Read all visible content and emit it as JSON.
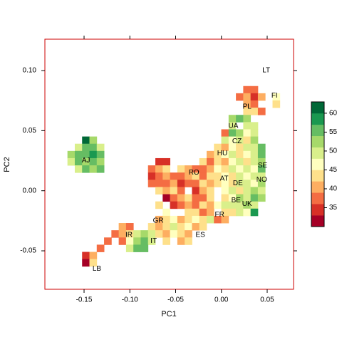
{
  "chart_data": {
    "type": "heatmap",
    "xlabel": "PC1",
    "ylabel": "PC2",
    "xlim": [
      -0.1928,
      0.0788
    ],
    "ylim": [
      -0.082,
      0.1261
    ],
    "xticks": [
      -0.15,
      {
        "value": -0.1,
        "label": "-0.10"
      },
      -0.05,
      {
        "value": 0,
        "label": "0.00"
      },
      0.05
    ],
    "yticks": [
      -0.05,
      {
        "value": 0,
        "label": "0.00"
      },
      0.05,
      {
        "value": 0.1,
        "label": "0.10"
      }
    ],
    "border_color": "#cc0000",
    "rows": [
      {
        "y": 0.084,
        "x": [
          0.028,
          0.036
        ],
        "values": [
          36,
          36
        ]
      },
      {
        "y": 0.078,
        "x": [
          0.02,
          0.028,
          0.036,
          0.044,
          0.06
        ],
        "values": [
          38,
          40,
          34,
          40,
          46
        ]
      },
      {
        "y": 0.072,
        "x": [
          0.028,
          0.036,
          0.06
        ],
        "values": [
          40,
          36,
          44
        ]
      },
      {
        "y": 0.066,
        "x": [
          0.028,
          0.036,
          0.044
        ],
        "values": [
          42,
          44,
          38
        ]
      },
      {
        "y": 0.06,
        "x": [
          0.012,
          0.02,
          0.028
        ],
        "values": [
          52,
          56,
          52
        ]
      },
      {
        "y": 0.054,
        "x": [
          0.012,
          0.028,
          0.036
        ],
        "values": [
          50,
          48,
          50
        ]
      },
      {
        "y": 0.048,
        "x": [
          0.004,
          0.012,
          0.02,
          0.028,
          0.036
        ],
        "values": [
          38,
          54,
          52,
          46,
          48
        ]
      },
      {
        "y": 0.042,
        "x": [
          -0.148,
          -0.14,
          0.004,
          0.012,
          0.02,
          0.028,
          0.036
        ],
        "values": [
          62,
          52,
          50,
          46,
          48,
          44,
          52
        ]
      },
      {
        "y": 0.036,
        "x": [
          -0.156,
          -0.148,
          -0.14,
          -0.132,
          -0.004,
          0.004,
          0.012,
          0.02,
          0.028,
          0.036,
          0.044
        ],
        "values": [
          50,
          56,
          54,
          48,
          42,
          40,
          46,
          44,
          48,
          50,
          56
        ]
      },
      {
        "y": 0.03,
        "x": [
          -0.164,
          -0.156,
          -0.148,
          -0.14,
          -0.132,
          -0.012,
          -0.004,
          0.004,
          0.012,
          0.02,
          0.028,
          0.036,
          0.044
        ],
        "values": [
          52,
          56,
          54,
          58,
          56,
          40,
          44,
          46,
          48,
          42,
          46,
          50,
          54
        ]
      },
      {
        "y": 0.024,
        "x": [
          -0.164,
          -0.156,
          -0.148,
          -0.14,
          -0.132,
          -0.068,
          -0.06,
          -0.02,
          -0.012,
          -0.004,
          0.004,
          0.012,
          0.02,
          0.028,
          0.036,
          0.044
        ],
        "values": [
          50,
          54,
          52,
          56,
          52,
          34,
          34,
          42,
          38,
          44,
          40,
          46,
          48,
          44,
          48,
          52
        ]
      },
      {
        "y": 0.018,
        "x": [
          -0.156,
          -0.148,
          -0.14,
          -0.132,
          -0.076,
          -0.068,
          -0.06,
          -0.044,
          -0.036,
          -0.028,
          -0.02,
          -0.012,
          -0.004,
          0.004,
          0.012,
          0.02,
          0.028,
          0.036,
          0.044
        ],
        "values": [
          48,
          56,
          52,
          54,
          36,
          40,
          42,
          42,
          40,
          38,
          36,
          40,
          46,
          44,
          48,
          46,
          48,
          46,
          54
        ]
      },
      {
        "y": 0.012,
        "x": [
          -0.076,
          -0.068,
          -0.06,
          -0.052,
          -0.044,
          -0.036,
          -0.028,
          -0.02,
          -0.012,
          -0.004,
          0.004,
          0.012,
          0.02,
          0.028,
          0.036,
          0.044
        ],
        "values": [
          34,
          36,
          40,
          38,
          36,
          40,
          42,
          38,
          44,
          42,
          46,
          44,
          50,
          46,
          48,
          50
        ]
      },
      {
        "y": 0.006,
        "x": [
          -0.076,
          -0.068,
          -0.06,
          -0.052,
          -0.044,
          -0.036,
          -0.028,
          -0.02,
          -0.012,
          -0.004,
          0.004,
          0.012,
          0.02,
          0.028,
          0.036,
          0.044
        ],
        "values": [
          36,
          38,
          36,
          40,
          34,
          38,
          36,
          42,
          40,
          44,
          46,
          42,
          48,
          50,
          46,
          52
        ]
      },
      {
        "y": 0.0,
        "x": [
          -0.068,
          -0.06,
          -0.052,
          -0.044,
          -0.028,
          -0.02,
          -0.012,
          0.004,
          0.012,
          0.02,
          0.028,
          0.036,
          0.044
        ],
        "values": [
          42,
          40,
          44,
          38,
          34,
          40,
          44,
          46,
          48,
          44,
          50,
          52,
          50
        ]
      },
      {
        "y": -0.006,
        "x": [
          -0.06,
          -0.052,
          -0.044,
          -0.036,
          -0.028,
          -0.02,
          -0.012,
          0.004,
          0.012,
          0.02,
          0.028,
          0.036,
          0.044
        ],
        "values": [
          32,
          36,
          40,
          42,
          38,
          36,
          42,
          44,
          46,
          52,
          50,
          54,
          52
        ]
      },
      {
        "y": -0.012,
        "x": [
          -0.068,
          -0.052,
          -0.044,
          -0.036,
          -0.028,
          -0.02,
          -0.012,
          -0.004,
          0.004,
          0.012,
          0.02,
          0.028,
          0.036
        ],
        "values": [
          42,
          34,
          36,
          40,
          38,
          42,
          40,
          46,
          48,
          50,
          48,
          52,
          50
        ]
      },
      {
        "y": -0.018,
        "x": [
          -0.06,
          -0.036,
          -0.028,
          -0.02,
          -0.012,
          0.004,
          0.012,
          0.02,
          0.028,
          0.036
        ],
        "values": [
          46,
          42,
          44,
          38,
          40,
          44,
          42,
          48,
          46,
          58
        ]
      },
      {
        "y": -0.024,
        "x": [
          -0.068,
          -0.06,
          -0.052,
          -0.044,
          -0.036,
          -0.028,
          -0.02,
          -0.012,
          -0.004,
          0.004
        ],
        "values": [
          40,
          44,
          46,
          40,
          42,
          46,
          44,
          48,
          36,
          40
        ]
      },
      {
        "y": -0.03,
        "x": [
          -0.108,
          -0.1,
          -0.076,
          -0.068,
          -0.06,
          -0.052,
          -0.044,
          -0.036,
          -0.028,
          -0.02
        ],
        "values": [
          40,
          36,
          42,
          40,
          44,
          48,
          42,
          46,
          40,
          44
        ]
      },
      {
        "y": -0.036,
        "x": [
          -0.116,
          -0.108,
          -0.1,
          -0.092,
          -0.084,
          -0.076,
          -0.068,
          -0.06,
          -0.052,
          -0.044,
          -0.036
        ],
        "values": [
          38,
          40,
          42,
          50,
          52,
          48,
          42,
          40,
          46,
          42,
          40
        ]
      },
      {
        "y": -0.042,
        "x": [
          -0.124,
          -0.108,
          -0.1,
          -0.092,
          -0.084,
          -0.076,
          -0.06,
          -0.044,
          -0.036
        ],
        "values": [
          36,
          38,
          46,
          52,
          56,
          50,
          44,
          40,
          42
        ]
      },
      {
        "y": -0.048,
        "x": [
          -0.132,
          -0.1,
          -0.092,
          -0.084
        ],
        "values": [
          38,
          50,
          56,
          54
        ]
      },
      {
        "y": -0.054,
        "x": [
          -0.148,
          -0.14
        ],
        "values": [
          34,
          40
        ]
      },
      {
        "y": -0.06,
        "x": [
          -0.148,
          -0.14
        ],
        "values": [
          32,
          44
        ]
      }
    ],
    "annotations": [
      {
        "text": "LT",
        "x": 0.049,
        "y": 0.1
      },
      {
        "text": "FI",
        "x": 0.058,
        "y": 0.079
      },
      {
        "text": "PL",
        "x": 0.028,
        "y": 0.07
      },
      {
        "text": "UA",
        "x": 0.013,
        "y": 0.054
      },
      {
        "text": "CZ",
        "x": 0.017,
        "y": 0.041
      },
      {
        "text": "HU",
        "x": 0.001,
        "y": 0.031
      },
      {
        "text": "SE",
        "x": 0.045,
        "y": 0.021
      },
      {
        "text": "RO",
        "x": -0.03,
        "y": 0.015
      },
      {
        "text": "AT",
        "x": 0.003,
        "y": 0.01
      },
      {
        "text": "NO",
        "x": 0.044,
        "y": 0.009
      },
      {
        "text": "DE",
        "x": 0.018,
        "y": 0.006
      },
      {
        "text": "BE",
        "x": 0.016,
        "y": -0.008
      },
      {
        "text": "UK",
        "x": 0.028,
        "y": -0.011
      },
      {
        "text": "FR",
        "x": -0.002,
        "y": -0.02
      },
      {
        "text": "GR",
        "x": -0.069,
        "y": -0.025
      },
      {
        "text": "ES",
        "x": -0.023,
        "y": -0.037
      },
      {
        "text": "IR",
        "x": -0.101,
        "y": -0.037
      },
      {
        "text": "IT",
        "x": -0.074,
        "y": -0.042
      },
      {
        "text": "LB",
        "x": -0.136,
        "y": -0.065
      },
      {
        "text": "AJ",
        "x": -0.148,
        "y": 0.025
      }
    ],
    "colorkey": {
      "breaks": [
        30,
        33,
        36,
        39,
        42,
        45,
        48,
        51,
        54,
        57,
        60,
        63
      ],
      "colors": [
        "#a50026",
        "#d73027",
        "#f46d43",
        "#fdae61",
        "#fee08b",
        "#ffffbf",
        "#d9ef8b",
        "#a6d96a",
        "#66bd63",
        "#1a9850",
        "#006837"
      ],
      "ticks": [
        35,
        40,
        45,
        50,
        55,
        60
      ]
    }
  }
}
